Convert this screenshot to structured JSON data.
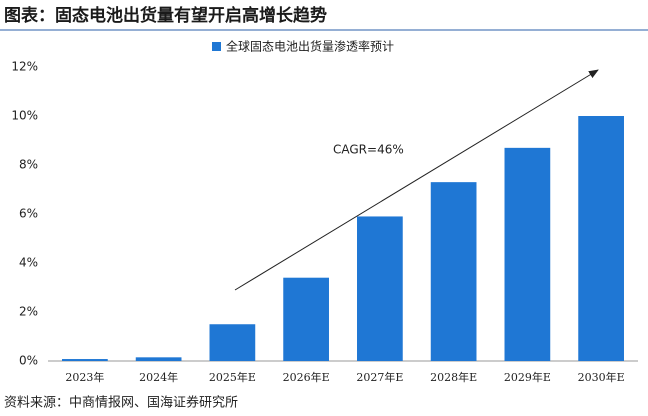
{
  "chart_data": {
    "type": "bar",
    "title": "图表：固态电池出货量有望开启高增长趋势",
    "source": "资料来源：中商情报网、国海证券研究所",
    "annotation": "CAGR=46%",
    "categories": [
      "2023年",
      "2024年",
      "2025年E",
      "2026年E",
      "2027年E",
      "2028年E",
      "2029年E",
      "2030年E"
    ],
    "series": [
      {
        "name": "全球固态电池出货量渗透率预计",
        "color": "#1f77d4",
        "values": [
          0.08,
          0.15,
          1.5,
          3.4,
          5.9,
          7.3,
          8.7,
          10.0
        ]
      }
    ],
    "ylim": [
      0,
      12
    ],
    "yticks": [
      {
        "value": 0,
        "label": "0%"
      },
      {
        "value": 2,
        "label": "2%"
      },
      {
        "value": 4,
        "label": "4%"
      },
      {
        "value": 6,
        "label": "6%"
      },
      {
        "value": 8,
        "label": "8%"
      },
      {
        "value": 10,
        "label": "10%"
      },
      {
        "value": 12,
        "label": "12%"
      }
    ],
    "grid": false
  }
}
